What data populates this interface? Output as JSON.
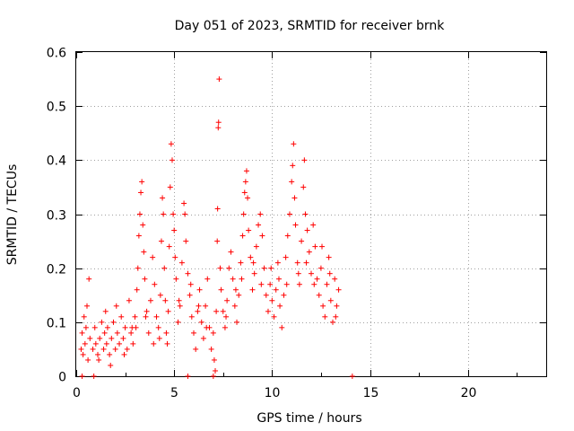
{
  "chart_data": {
    "type": "scatter",
    "title": "Day 051 of 2023, SRMTID for receiver brnk",
    "xlabel": "GPS time / hours",
    "ylabel": "SRMTID / TECUs",
    "xlim": [
      0,
      24
    ],
    "ylim": [
      0,
      0.6
    ],
    "xticks": [
      0,
      5,
      10,
      15,
      20
    ],
    "xtick_labels": [
      "0",
      "5",
      "10",
      "15",
      "20"
    ],
    "yticks": [
      0,
      0.1,
      0.2,
      0.3,
      0.4,
      0.5,
      0.6
    ],
    "ytick_labels": [
      "0",
      "0.1",
      "0.2",
      "0.3",
      "0.4",
      "0.5",
      "0.6"
    ],
    "grid": true,
    "marker": "+",
    "series": [
      {
        "name": "SRMTID",
        "color": "#ff0000",
        "points": [
          [
            0.25,
            0.05
          ],
          [
            0.3,
            0.08
          ],
          [
            0.35,
            0.04
          ],
          [
            0.4,
            0.11
          ],
          [
            0.45,
            0.06
          ],
          [
            0.5,
            0.09
          ],
          [
            0.55,
            0.13
          ],
          [
            0.6,
            0.03
          ],
          [
            0.65,
            0.18
          ],
          [
            0.7,
            0.07
          ],
          [
            0.85,
            0.05
          ],
          [
            0.95,
            0.09
          ],
          [
            1.0,
            0.06
          ],
          [
            1.1,
            0.04
          ],
          [
            1.2,
            0.07
          ],
          [
            1.3,
            0.1
          ],
          [
            1.4,
            0.05
          ],
          [
            1.45,
            0.08
          ],
          [
            1.5,
            0.12
          ],
          [
            1.55,
            0.06
          ],
          [
            1.6,
            0.09
          ],
          [
            1.7,
            0.04
          ],
          [
            1.8,
            0.07
          ],
          [
            1.9,
            0.1
          ],
          [
            2.0,
            0.05
          ],
          [
            2.05,
            0.13
          ],
          [
            2.1,
            0.08
          ],
          [
            2.2,
            0.06
          ],
          [
            2.3,
            0.11
          ],
          [
            2.4,
            0.07
          ],
          [
            2.5,
            0.09
          ],
          [
            2.6,
            0.05
          ],
          [
            2.7,
            0.14
          ],
          [
            2.8,
            0.08
          ],
          [
            2.9,
            0.06
          ],
          [
            3.0,
            0.11
          ],
          [
            3.05,
            0.09
          ],
          [
            3.1,
            0.16
          ],
          [
            3.15,
            0.2
          ],
          [
            3.2,
            0.26
          ],
          [
            3.25,
            0.3
          ],
          [
            3.3,
            0.34
          ],
          [
            3.35,
            0.36
          ],
          [
            3.4,
            0.28
          ],
          [
            3.45,
            0.23
          ],
          [
            3.5,
            0.18
          ],
          [
            3.6,
            0.12
          ],
          [
            3.7,
            0.08
          ],
          [
            3.8,
            0.14
          ],
          [
            3.9,
            0.22
          ],
          [
            4.0,
            0.17
          ],
          [
            4.1,
            0.11
          ],
          [
            4.2,
            0.09
          ],
          [
            4.3,
            0.15
          ],
          [
            4.35,
            0.25
          ],
          [
            4.4,
            0.33
          ],
          [
            4.45,
            0.3
          ],
          [
            4.5,
            0.2
          ],
          [
            4.55,
            0.14
          ],
          [
            4.6,
            0.08
          ],
          [
            4.65,
            0.06
          ],
          [
            4.7,
            0.12
          ],
          [
            4.75,
            0.24
          ],
          [
            4.8,
            0.35
          ],
          [
            4.85,
            0.43
          ],
          [
            4.9,
            0.4
          ],
          [
            4.95,
            0.3
          ],
          [
            5.0,
            0.27
          ],
          [
            5.05,
            0.22
          ],
          [
            5.1,
            0.18
          ],
          [
            5.2,
            0.1
          ],
          [
            5.3,
            0.13
          ],
          [
            5.4,
            0.21
          ],
          [
            5.5,
            0.32
          ],
          [
            5.55,
            0.3
          ],
          [
            5.6,
            0.25
          ],
          [
            5.7,
            0.19
          ],
          [
            5.8,
            0.15
          ],
          [
            5.9,
            0.11
          ],
          [
            6.0,
            0.08
          ],
          [
            6.1,
            0.05
          ],
          [
            6.2,
            0.12
          ],
          [
            6.3,
            0.16
          ],
          [
            6.4,
            0.1
          ],
          [
            6.5,
            0.07
          ],
          [
            6.6,
            0.13
          ],
          [
            6.7,
            0.18
          ],
          [
            6.8,
            0.09
          ],
          [
            6.9,
            0.05
          ],
          [
            7.0,
            0.08
          ],
          [
            7.05,
            0.03
          ],
          [
            7.1,
            0.01
          ],
          [
            7.15,
            0.12
          ],
          [
            7.2,
            0.25
          ],
          [
            7.22,
            0.31
          ],
          [
            7.25,
            0.46
          ],
          [
            7.27,
            0.47
          ],
          [
            7.3,
            0.55
          ],
          [
            7.35,
            0.2
          ],
          [
            7.4,
            0.16
          ],
          [
            7.5,
            0.12
          ],
          [
            7.6,
            0.09
          ],
          [
            7.7,
            0.14
          ],
          [
            7.8,
            0.2
          ],
          [
            7.9,
            0.23
          ],
          [
            8.0,
            0.18
          ],
          [
            8.1,
            0.13
          ],
          [
            8.2,
            0.1
          ],
          [
            8.3,
            0.15
          ],
          [
            8.4,
            0.21
          ],
          [
            8.5,
            0.26
          ],
          [
            8.55,
            0.3
          ],
          [
            8.6,
            0.34
          ],
          [
            8.65,
            0.36
          ],
          [
            8.7,
            0.38
          ],
          [
            8.75,
            0.33
          ],
          [
            8.8,
            0.27
          ],
          [
            8.9,
            0.22
          ],
          [
            9.0,
            0.16
          ],
          [
            9.1,
            0.19
          ],
          [
            9.2,
            0.24
          ],
          [
            9.3,
            0.28
          ],
          [
            9.4,
            0.3
          ],
          [
            9.5,
            0.26
          ],
          [
            9.6,
            0.2
          ],
          [
            9.7,
            0.15
          ],
          [
            9.8,
            0.12
          ],
          [
            9.9,
            0.17
          ],
          [
            10.0,
            0.14
          ],
          [
            10.1,
            0.11
          ],
          [
            10.2,
            0.16
          ],
          [
            10.3,
            0.21
          ],
          [
            10.4,
            0.13
          ],
          [
            10.5,
            0.09
          ],
          [
            10.6,
            0.15
          ],
          [
            10.7,
            0.22
          ],
          [
            10.8,
            0.26
          ],
          [
            10.9,
            0.3
          ],
          [
            11.0,
            0.36
          ],
          [
            11.05,
            0.39
          ],
          [
            11.1,
            0.43
          ],
          [
            11.15,
            0.33
          ],
          [
            11.2,
            0.28
          ],
          [
            11.3,
            0.21
          ],
          [
            11.4,
            0.17
          ],
          [
            11.5,
            0.25
          ],
          [
            11.6,
            0.35
          ],
          [
            11.65,
            0.4
          ],
          [
            11.7,
            0.3
          ],
          [
            11.8,
            0.27
          ],
          [
            11.9,
            0.23
          ],
          [
            12.0,
            0.19
          ],
          [
            12.1,
            0.28
          ],
          [
            12.2,
            0.24
          ],
          [
            12.3,
            0.18
          ],
          [
            12.4,
            0.15
          ],
          [
            12.5,
            0.2
          ],
          [
            12.6,
            0.13
          ],
          [
            12.7,
            0.11
          ],
          [
            12.8,
            0.17
          ],
          [
            12.9,
            0.22
          ],
          [
            13.0,
            0.14
          ],
          [
            13.1,
            0.1
          ],
          [
            13.2,
            0.18
          ],
          [
            13.3,
            0.13
          ],
          [
            13.4,
            0.16
          ],
          [
            0.3,
            0.0
          ],
          [
            0.9,
            0.0
          ],
          [
            5.7,
            0.0
          ],
          [
            7.0,
            0.0
          ],
          [
            14.1,
            0.0
          ],
          [
            1.15,
            0.03
          ],
          [
            1.75,
            0.02
          ],
          [
            2.45,
            0.04
          ],
          [
            2.85,
            0.09
          ],
          [
            3.55,
            0.11
          ],
          [
            3.95,
            0.06
          ],
          [
            4.25,
            0.07
          ],
          [
            5.25,
            0.14
          ],
          [
            5.85,
            0.17
          ],
          [
            6.25,
            0.13
          ],
          [
            6.65,
            0.09
          ],
          [
            7.65,
            0.11
          ],
          [
            8.15,
            0.16
          ],
          [
            8.45,
            0.18
          ],
          [
            9.05,
            0.21
          ],
          [
            9.45,
            0.17
          ],
          [
            9.95,
            0.2
          ],
          [
            10.35,
            0.18
          ],
          [
            10.75,
            0.17
          ],
          [
            11.35,
            0.19
          ],
          [
            11.75,
            0.21
          ],
          [
            12.15,
            0.17
          ],
          [
            12.55,
            0.24
          ],
          [
            12.95,
            0.19
          ],
          [
            13.25,
            0.11
          ]
        ]
      }
    ]
  }
}
